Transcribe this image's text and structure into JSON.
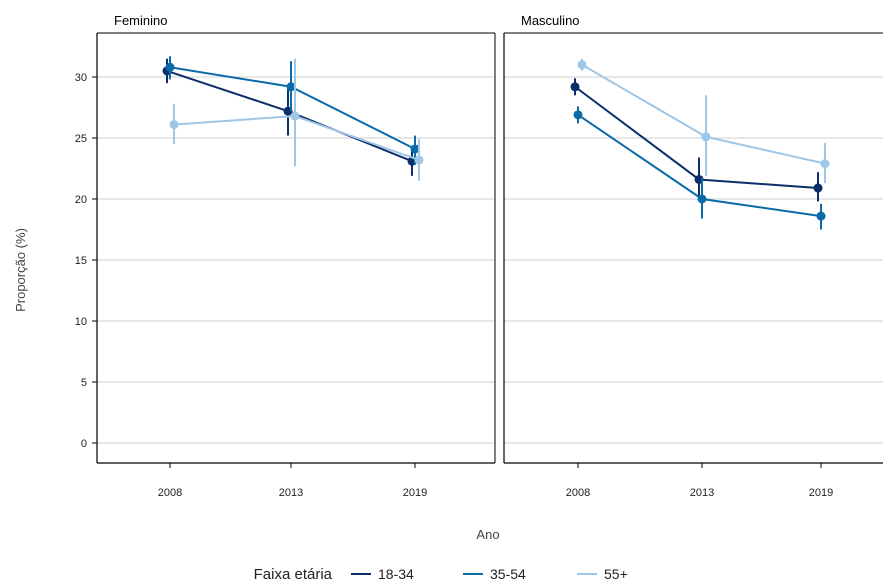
{
  "chart_data": {
    "type": "line",
    "xlabel": "Ano",
    "ylabel": "Proporção (%)",
    "ylim": [
      0,
      33
    ],
    "yticks": [
      0,
      5,
      10,
      15,
      20,
      25,
      30
    ],
    "categories": [
      "2008",
      "2013",
      "2019"
    ],
    "grid": "horizontal",
    "legend": {
      "title": "Faixa etária",
      "placement": "bottom",
      "entries": [
        "18-34",
        "35-54",
        "55+"
      ]
    },
    "colors": {
      "18-34": "#0b2f6b",
      "35-54": "#0b6aa8",
      "55+": "#9fc6e6"
    },
    "panels": [
      {
        "title": "Feminino",
        "series": [
          {
            "name": "18-34",
            "values": [
              30.5,
              27.2,
              23.1
            ],
            "lower": [
              29.5,
              25.2,
              21.9
            ],
            "upper": [
              31.5,
              29.0,
              24.3
            ]
          },
          {
            "name": "35-54",
            "values": [
              30.8,
              29.2,
              24.1
            ],
            "lower": [
              29.8,
              27.2,
              22.8
            ],
            "upper": [
              31.7,
              31.3,
              25.2
            ]
          },
          {
            "name": "55+",
            "values": [
              26.1,
              26.8,
              23.2
            ],
            "lower": [
              24.5,
              22.7,
              21.5
            ],
            "upper": [
              27.8,
              31.5,
              24.9
            ]
          }
        ]
      },
      {
        "title": "Masculino",
        "series": [
          {
            "name": "18-34",
            "values": [
              29.2,
              21.6,
              20.9
            ],
            "lower": [
              28.5,
              20.0,
              19.8
            ],
            "upper": [
              29.9,
              23.4,
              22.2
            ]
          },
          {
            "name": "35-54",
            "values": [
              26.9,
              20.0,
              18.6
            ],
            "lower": [
              26.2,
              18.4,
              17.5
            ],
            "upper": [
              27.6,
              21.7,
              19.6
            ]
          },
          {
            "name": "55+",
            "values": [
              31.0,
              25.1,
              22.9
            ],
            "lower": [
              30.5,
              21.9,
              21.3
            ],
            "upper": [
              31.5,
              28.5,
              24.6
            ]
          }
        ]
      }
    ]
  }
}
